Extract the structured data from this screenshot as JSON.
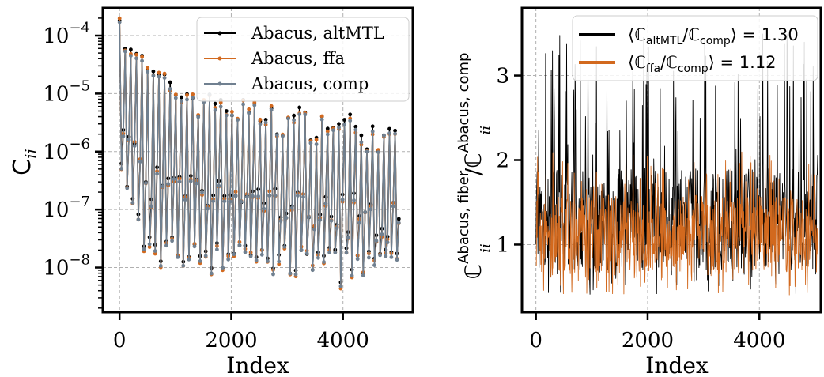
{
  "chart_data": [
    {
      "type": "line",
      "title": "",
      "xlabel": "Index",
      "ylabel": "C",
      "ylabel_sub": "ii",
      "yscale": "log",
      "xlim": [
        -300,
        5250
      ],
      "ylim": [
        1.7e-09,
        0.0003
      ],
      "xticks": [
        0,
        2000,
        4000
      ],
      "xtick_labels": [
        "0",
        "2000",
        "4000"
      ],
      "yticks": [
        1e-08,
        1e-07,
        1e-06,
        1e-05,
        0.0001
      ],
      "ytick_labels": [
        {
          "base": "10",
          "exp": "−8"
        },
        {
          "base": "10",
          "exp": "−7"
        },
        {
          "base": "10",
          "exp": "−6"
        },
        {
          "base": "10",
          "exp": "−5"
        },
        {
          "base": "10",
          "exp": "−4"
        }
      ],
      "grid": true,
      "legend_position": "top-right",
      "x_range": [
        0,
        5000
      ],
      "series": [
        {
          "name": "Abacus, altMTL",
          "color": "#000000",
          "level_factor": 1.15
        },
        {
          "name": "Abacus, ffa",
          "color": "#d2691e",
          "level_factor": 1.05
        },
        {
          "name": "Abacus, comp",
          "color": "#708090",
          "level_factor": 1.0
        }
      ],
      "peak_envelope": [
        {
          "x": 0,
          "y": 0.00017
        },
        {
          "x": 500,
          "y": 3e-05
        },
        {
          "x": 1000,
          "y": 1.5e-05
        },
        {
          "x": 2000,
          "y": 8e-06
        },
        {
          "x": 3000,
          "y": 5e-06
        },
        {
          "x": 4000,
          "y": 4e-06
        },
        {
          "x": 5000,
          "y": 2e-06
        }
      ],
      "trough_envelope": [
        {
          "x": 0,
          "y": 2e-07
        },
        {
          "x": 500,
          "y": 1e-08
        },
        {
          "x": 2000,
          "y": 8e-09
        },
        {
          "x": 5000,
          "y": 5e-09
        }
      ]
    },
    {
      "type": "line",
      "title": "",
      "xlabel": "Index",
      "ylabel_main": "ℂ",
      "ylabel_sup1": "Abacus, fiber",
      "ylabel_sub1": "ii",
      "ylabel_sup2": "Abacus, comp",
      "ylabel_sub2": "ii",
      "xlim": [
        -250,
        5100
      ],
      "ylim": [
        0.2,
        3.8
      ],
      "xticks": [
        0,
        2000,
        4000
      ],
      "xtick_labels": [
        "0",
        "2000",
        "4000"
      ],
      "yticks": [
        1,
        2,
        3
      ],
      "ytick_labels": [
        "1",
        "2",
        "3"
      ],
      "grid": true,
      "legend_position": "top-right",
      "x_range": [
        0,
        5050
      ],
      "series": [
        {
          "name": "⟨ℂaltMTL/ℂcomp⟩ = 1.30",
          "legend_main1": "⟨ℂ",
          "legend_sub1": "altMTL",
          "legend_mid": "/ℂ",
          "legend_sub2": "comp",
          "legend_tail": "⟩ = 1.30",
          "color": "#000000",
          "mean": 1.3,
          "min": 0.4,
          "max": 3.5
        },
        {
          "name": "⟨ℂffa/ℂcomp⟩ = 1.12",
          "legend_main1": "⟨ℂ",
          "legend_sub1": "ffa",
          "legend_mid": "/ℂ",
          "legend_sub2": "comp",
          "legend_tail": "⟩ = 1.12",
          "color": "#d2691e",
          "mean": 1.12,
          "min": 0.4,
          "max": 2.1
        }
      ]
    }
  ]
}
